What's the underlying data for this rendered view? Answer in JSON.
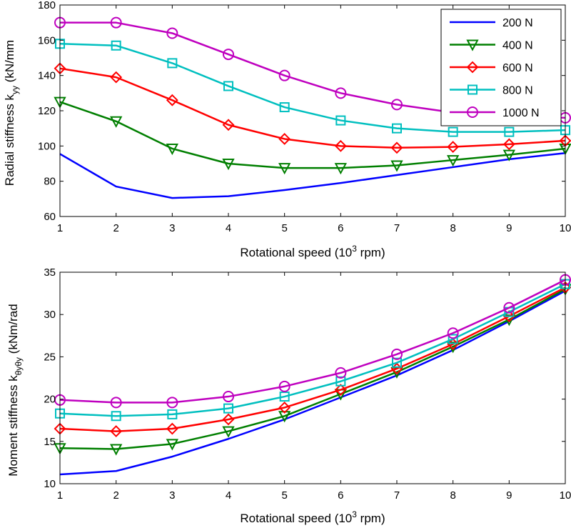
{
  "chart_data": [
    {
      "type": "line",
      "x": [
        1,
        2,
        3,
        4,
        5,
        6,
        7,
        8,
        9,
        10
      ],
      "xlim": [
        1,
        10
      ],
      "ylim": [
        60,
        180
      ],
      "xticks": [
        "1",
        "2",
        "3",
        "4",
        "5",
        "6",
        "7",
        "8",
        "9",
        "10"
      ],
      "yticks": [
        "60",
        "80",
        "100",
        "120",
        "140",
        "160",
        "180"
      ],
      "xlabel": {
        "main": "Rotational speed (10",
        "sup": "3",
        "tail": " rpm)"
      },
      "ylabel": {
        "main": "Radial stiffness k",
        "sub": "yy",
        "tail": " (kN/mm"
      },
      "grid": false,
      "legend": "top-right",
      "series": [
        {
          "name": "200 N",
          "color": "#0000ff",
          "marker": "none",
          "values": [
            95.5,
            77,
            70.5,
            71.5,
            75,
            79,
            83.5,
            88,
            92.5,
            96
          ]
        },
        {
          "name": "400 N",
          "color": "#007f00",
          "marker": "triangle-down",
          "values": [
            125,
            114,
            98.5,
            90,
            87.5,
            87.5,
            89,
            92,
            95,
            98.5
          ]
        },
        {
          "name": "600 N",
          "color": "#ff0000",
          "marker": "diamond",
          "values": [
            144,
            139,
            126,
            112,
            104,
            100,
            99,
            99.5,
            101,
            103
          ]
        },
        {
          "name": "800 N",
          "color": "#00bfbf",
          "marker": "square",
          "values": [
            158,
            157,
            147,
            134,
            122,
            114.5,
            110,
            108,
            108,
            109
          ]
        },
        {
          "name": "1000 N",
          "color": "#bf00bf",
          "marker": "circle",
          "values": [
            170,
            170,
            164,
            152,
            140,
            130,
            123.5,
            119,
            117,
            116
          ]
        }
      ]
    },
    {
      "type": "line",
      "x": [
        1,
        2,
        3,
        4,
        5,
        6,
        7,
        8,
        9,
        10
      ],
      "xlim": [
        1,
        10
      ],
      "ylim": [
        10,
        35
      ],
      "xticks": [
        "1",
        "2",
        "3",
        "4",
        "5",
        "6",
        "7",
        "8",
        "9",
        "10"
      ],
      "yticks": [
        "10",
        "15",
        "20",
        "25",
        "30",
        "35"
      ],
      "xlabel": {
        "main": "Rotational speed (10",
        "sup": "3",
        "tail": " rpm)"
      },
      "ylabel": {
        "main": "Moment stiffness k",
        "sub": "θyθy",
        "tail": " (kNm/rad"
      },
      "grid": false,
      "legend": "none",
      "series": [
        {
          "name": "200 N",
          "color": "#0000ff",
          "marker": "none",
          "values": [
            11.1,
            11.5,
            13.2,
            15.3,
            17.6,
            20.2,
            22.8,
            25.8,
            29.2,
            32.8
          ]
        },
        {
          "name": "400 N",
          "color": "#007f00",
          "marker": "triangle-down",
          "values": [
            14.2,
            14.1,
            14.7,
            16.2,
            18,
            20.6,
            23.2,
            26.2,
            29.4,
            33
          ]
        },
        {
          "name": "600 N",
          "color": "#ff0000",
          "marker": "diamond",
          "values": [
            16.5,
            16.2,
            16.5,
            17.6,
            19,
            21.1,
            23.6,
            26.5,
            29.8,
            33.2
          ]
        },
        {
          "name": "800 N",
          "color": "#00bfbf",
          "marker": "square",
          "values": [
            18.3,
            18,
            18.2,
            18.9,
            20.3,
            22.1,
            24.3,
            27.1,
            30.3,
            33.6
          ]
        },
        {
          "name": "1000 N",
          "color": "#bf00bf",
          "marker": "circle",
          "values": [
            19.9,
            19.6,
            19.6,
            20.3,
            21.5,
            23.1,
            25.3,
            27.8,
            30.8,
            34.1
          ]
        }
      ]
    }
  ]
}
